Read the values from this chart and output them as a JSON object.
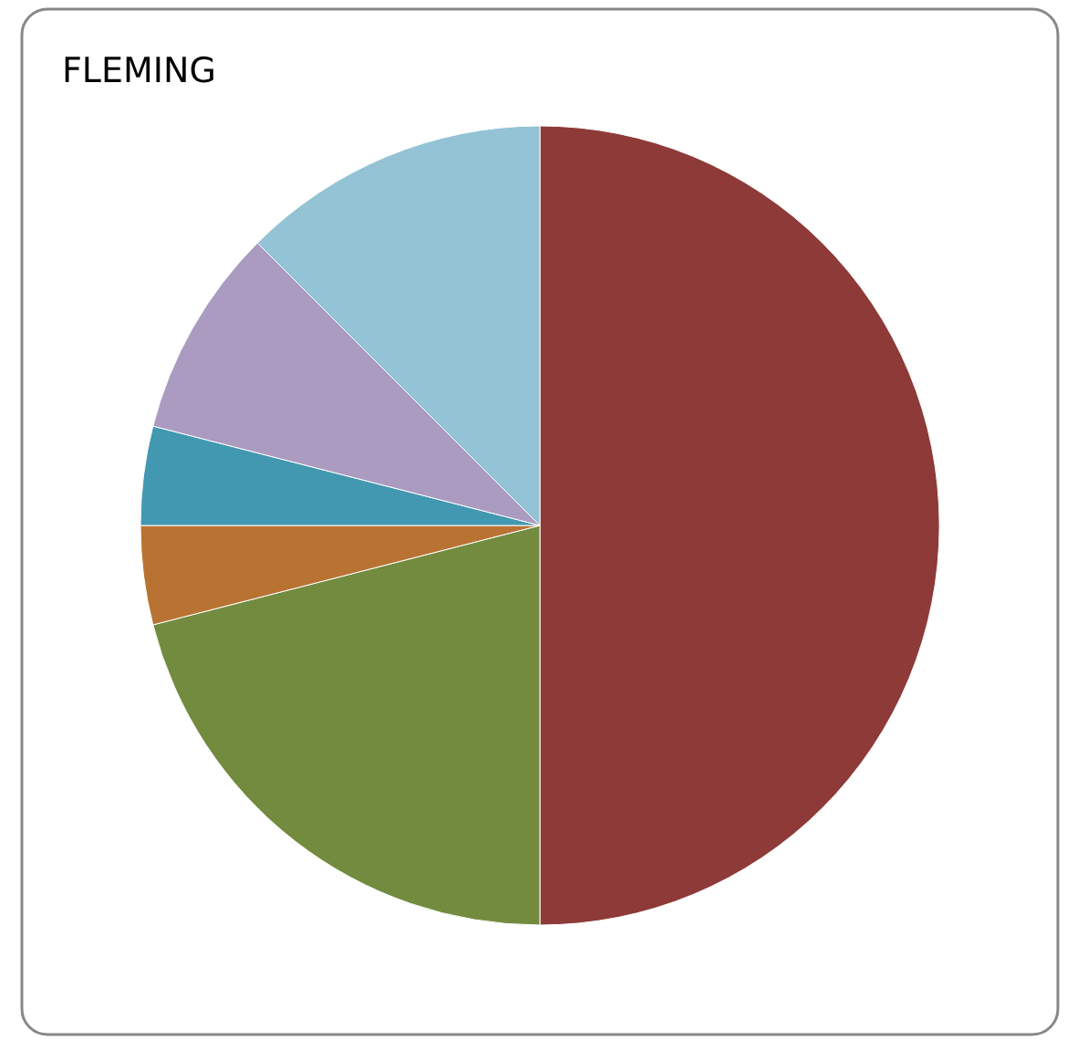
{
  "chart_data": {
    "type": "pie",
    "title": "FLEMING",
    "categories": [
      null,
      null,
      null,
      null,
      null,
      null
    ],
    "values": [
      50,
      21,
      4,
      4,
      8.5,
      12.5
    ],
    "colors": [
      "#8e3a38",
      "#728b3e",
      "#b87333",
      "#4298b0",
      "#ab9bc0",
      "#93c3d4"
    ]
  }
}
